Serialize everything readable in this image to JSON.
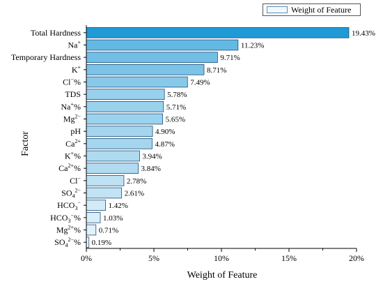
{
  "chart_data": {
    "type": "bar",
    "orientation": "horizontal",
    "xlabel": "Weight of Feature",
    "ylabel": "Factor",
    "xlim": [
      0,
      20
    ],
    "x_ticks": [
      "0%",
      "5%",
      "10%",
      "15%",
      "20%"
    ],
    "legend": {
      "label": "Weight of Feature",
      "position": "top-right"
    },
    "grid": false,
    "categories": [
      {
        "base": "Total Hardness",
        "sup": "",
        "sub": "",
        "tail": ""
      },
      {
        "base": "Na",
        "sup": "+",
        "sub": "",
        "tail": ""
      },
      {
        "base": "Temporary Hardness",
        "sup": "",
        "sub": "",
        "tail": ""
      },
      {
        "base": "K",
        "sup": "+",
        "sub": "",
        "tail": ""
      },
      {
        "base": "Cl",
        "sup": "−",
        "sub": "",
        "tail": "%"
      },
      {
        "base": "TDS",
        "sup": "",
        "sub": "",
        "tail": ""
      },
      {
        "base": "Na",
        "sup": "+",
        "sub": "",
        "tail": "%"
      },
      {
        "base": "Mg",
        "sup": "2−",
        "sub": "",
        "tail": ""
      },
      {
        "base": "pH",
        "sup": "",
        "sub": "",
        "tail": ""
      },
      {
        "base": "Ca",
        "sup": "2+",
        "sub": "",
        "tail": ""
      },
      {
        "base": "K",
        "sup": "+",
        "sub": "",
        "tail": "%"
      },
      {
        "base": "Ca",
        "sup": "2+",
        "sub": "",
        "tail": "%"
      },
      {
        "base": "Cl",
        "sup": "−",
        "sub": "",
        "tail": ""
      },
      {
        "base": "SO",
        "sup": "2−",
        "sub": "4",
        "tail": ""
      },
      {
        "base": "HCO",
        "sup": "−",
        "sub": "3",
        "tail": ""
      },
      {
        "base": "HCO",
        "sup": "−",
        "sub": "3",
        "tail": "%"
      },
      {
        "base": "Mg",
        "sup": "2+",
        "sub": "",
        "tail": "%"
      },
      {
        "base": "SO",
        "sup": "2−",
        "sub": "4",
        "tail": "%"
      }
    ],
    "values": [
      19.43,
      11.23,
      9.71,
      8.71,
      7.49,
      5.78,
      5.71,
      5.65,
      4.9,
      4.87,
      3.94,
      3.84,
      2.78,
      2.61,
      1.42,
      1.03,
      0.71,
      0.19
    ],
    "value_labels": [
      "19.43%",
      "11.23%",
      "9.71%",
      "8.71%",
      "7.49%",
      "5.78%",
      "5.71%",
      "5.65%",
      "4.90%",
      "4.87%",
      "3.94%",
      "3.84%",
      "2.78%",
      "2.61%",
      "1.42%",
      "1.03%",
      "0.71%",
      "0.19%"
    ],
    "colors": {
      "high": "#1f9ad6",
      "low": "#f2f9fd",
      "stroke": "#1f4e79"
    }
  }
}
